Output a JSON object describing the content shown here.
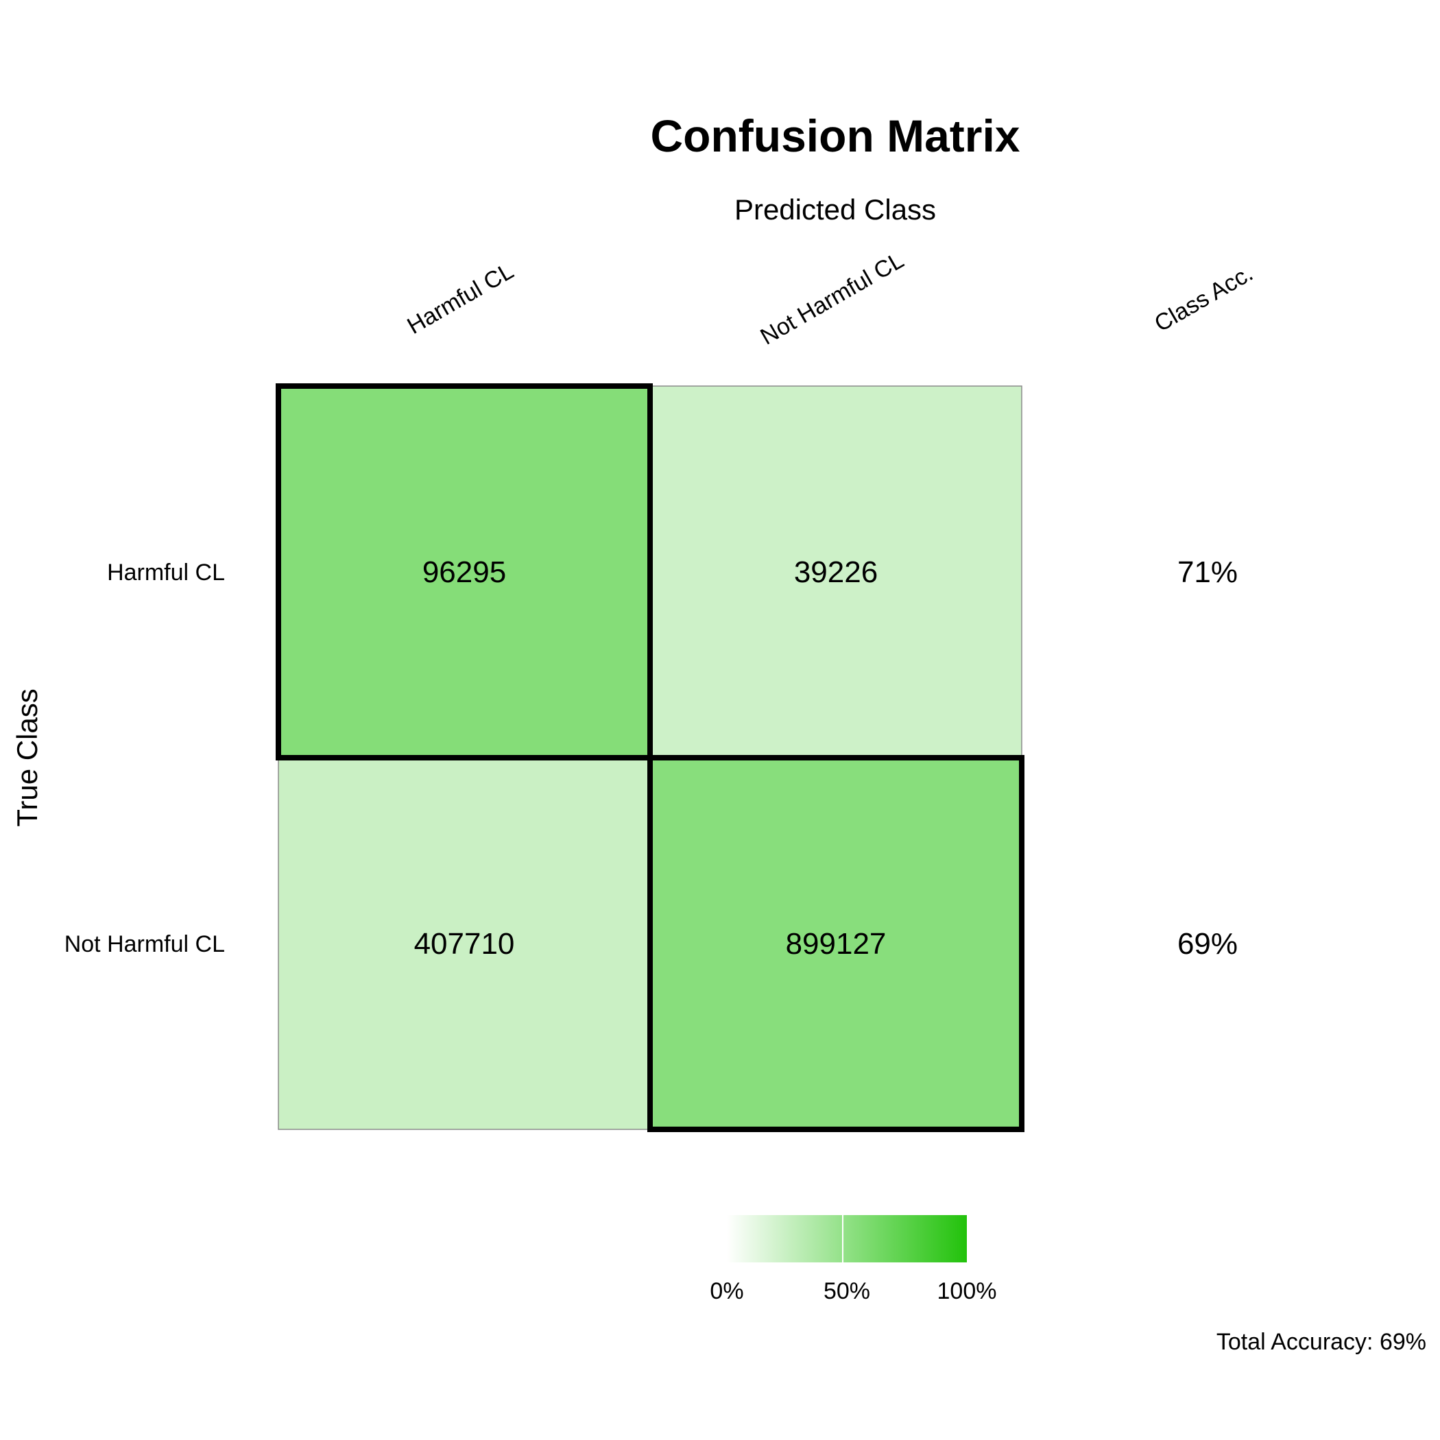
{
  "chart_data": {
    "type": "heatmap",
    "title": "Confusion Matrix",
    "xlabel": "Predicted Class",
    "ylabel": "True Class",
    "predicted_classes": [
      "Harmful CL",
      "Not Harmful CL"
    ],
    "true_classes": [
      "Harmful CL",
      "Not Harmful CL"
    ],
    "class_acc_label": "Class Acc.",
    "matrix": [
      [
        96295,
        39226
      ],
      [
        407710,
        899127
      ]
    ],
    "row_share": [
      [
        0.71,
        0.29
      ],
      [
        0.31,
        0.69
      ]
    ],
    "class_accuracy": [
      "71%",
      "69%"
    ],
    "diagonal_highlighted": true,
    "colorscale": {
      "low_color": "#ffffff",
      "high_color": "#22c20b",
      "ticks": [
        "0%",
        "50%",
        "100%"
      ]
    },
    "total_accuracy_text": "Total Accuracy: 69%"
  }
}
